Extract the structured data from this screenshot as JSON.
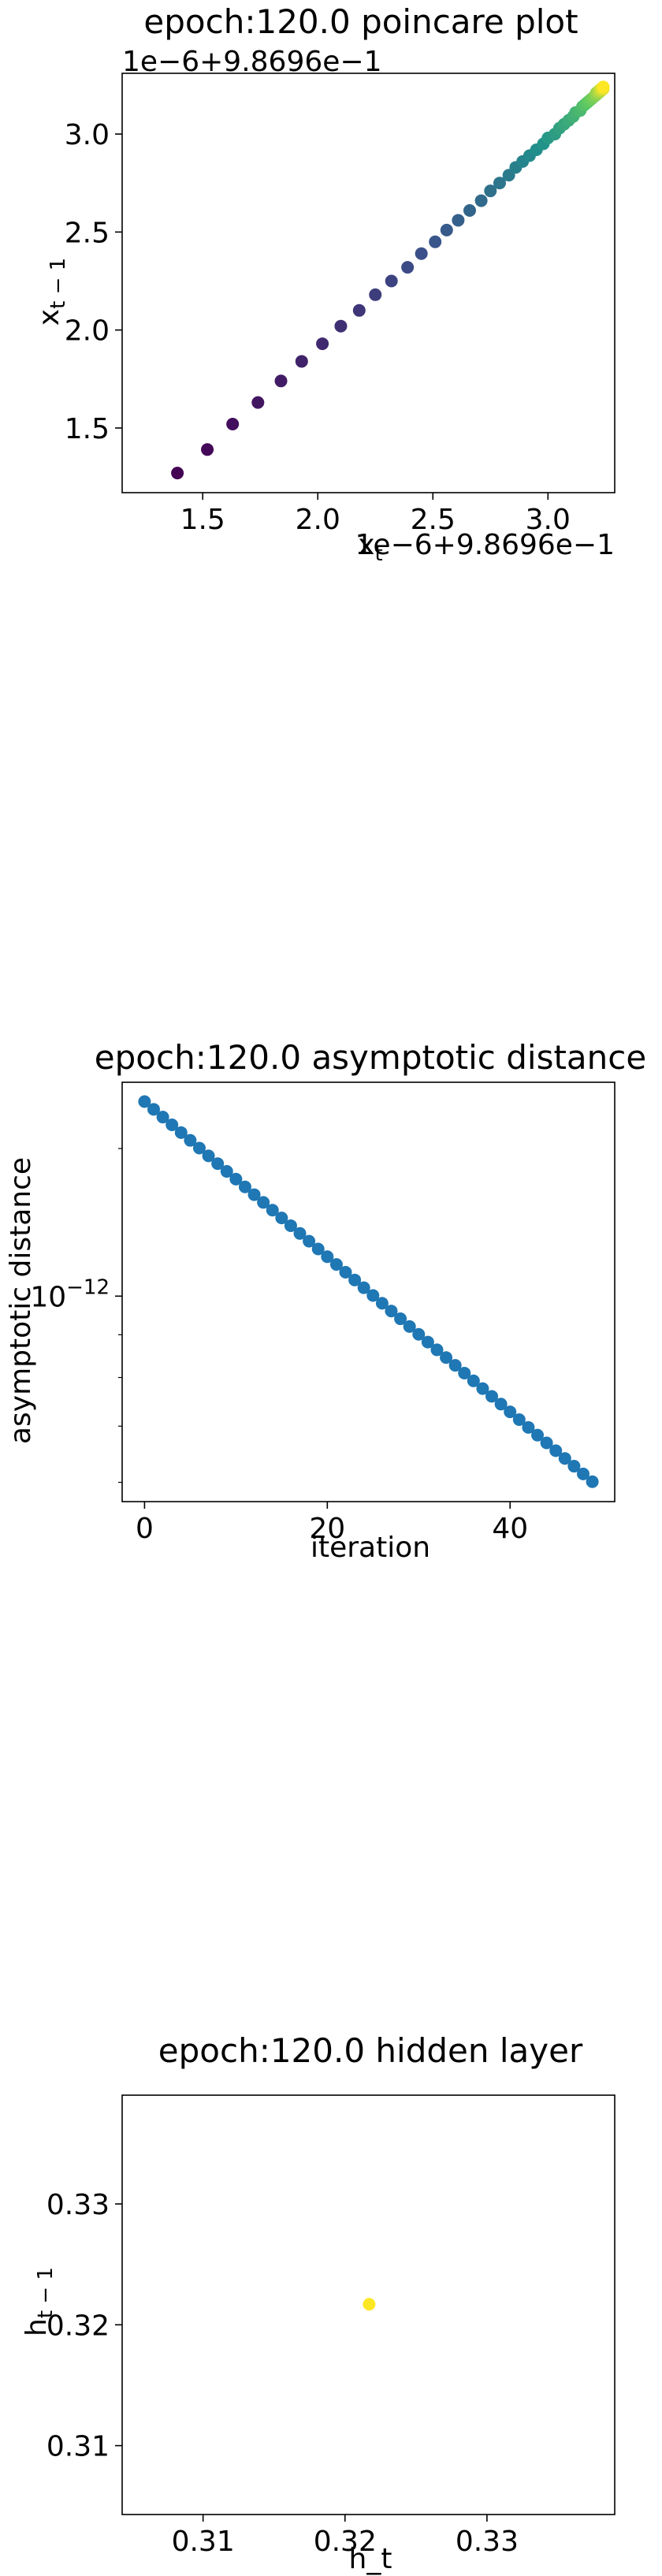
{
  "chart_data": [
    {
      "type": "scatter",
      "title": "epoch:120.0 poincare plot",
      "xlabel": "x_t",
      "ylabel": "x_{t-1}",
      "offset_label": "1e−6+9.8696e−1",
      "x_offset_label": "1e−6+9.8696e−1",
      "colormap": "viridis",
      "xlim": [
        1.15,
        3.29
      ],
      "ylim": [
        1.17,
        3.31
      ],
      "xticks": [
        1.5,
        2.0,
        2.5,
        3.0
      ],
      "xticklabels": [
        "1.5",
        "2.0",
        "2.5",
        "3.0"
      ],
      "yticks": [
        1.5,
        2.0,
        2.5,
        3.0
      ],
      "yticklabels": [
        "1.5",
        "2.0",
        "2.5",
        "3.0"
      ],
      "x": [
        1.39,
        1.52,
        1.63,
        1.74,
        1.84,
        1.93,
        2.02,
        2.1,
        2.18,
        2.25,
        2.32,
        2.39,
        2.45,
        2.51,
        2.56,
        2.61,
        2.66,
        2.71,
        2.75,
        2.79,
        2.83,
        2.86,
        2.89,
        2.92,
        2.95,
        2.98,
        3.0,
        3.03,
        3.05,
        3.07,
        3.09,
        3.11,
        3.12,
        3.14,
        3.15,
        3.16,
        3.17,
        3.18,
        3.19,
        3.2,
        3.21,
        3.21,
        3.22,
        3.22,
        3.23,
        3.23,
        3.23,
        3.24,
        3.24,
        3.24
      ],
      "y": [
        1.27,
        1.39,
        1.52,
        1.63,
        1.74,
        1.84,
        1.93,
        2.02,
        2.1,
        2.18,
        2.25,
        2.32,
        2.39,
        2.45,
        2.51,
        2.56,
        2.61,
        2.66,
        2.71,
        2.75,
        2.79,
        2.83,
        2.86,
        2.89,
        2.92,
        2.95,
        2.98,
        3.0,
        3.03,
        3.05,
        3.07,
        3.09,
        3.11,
        3.12,
        3.14,
        3.15,
        3.16,
        3.17,
        3.18,
        3.19,
        3.2,
        3.21,
        3.21,
        3.22,
        3.22,
        3.23,
        3.23,
        3.23,
        3.24,
        3.24
      ],
      "grid": false
    },
    {
      "type": "scatter",
      "title": "epoch:120.0 asymptotic distance",
      "xlabel": "iteration",
      "ylabel": "asymptotic distance",
      "yscale": "log",
      "color": "#1f77b4",
      "xlim": [
        -2.45,
        51.45
      ],
      "ylim_log10": [
        -12.245,
        -11.745
      ],
      "xticks": [
        0,
        20,
        40
      ],
      "xticklabels": [
        "0",
        "20",
        "40"
      ],
      "ytick_mantissa": "10",
      "ytick_exponent": "−12",
      "x": [
        0,
        1,
        2,
        3,
        4,
        5,
        6,
        7,
        8,
        9,
        10,
        11,
        12,
        13,
        14,
        15,
        16,
        17,
        18,
        19,
        20,
        21,
        22,
        23,
        24,
        25,
        26,
        27,
        28,
        29,
        30,
        31,
        32,
        33,
        34,
        35,
        36,
        37,
        38,
        39,
        40,
        41,
        42,
        43,
        44,
        45,
        46,
        47,
        48,
        49
      ],
      "y_log10_start": -11.768,
      "y_log10_step": -0.00925,
      "grid": false
    },
    {
      "type": "scatter",
      "title": "epoch:120.0 hidden layer",
      "xlabel": "h_t",
      "ylabel": "h_{t-1}",
      "color": "#fde725",
      "xlim": [
        0.3043,
        0.339
      ],
      "ylim": [
        0.3043,
        0.339
      ],
      "xticks": [
        0.31,
        0.32,
        0.33
      ],
      "xticklabels": [
        "0.31",
        "0.32",
        "0.33"
      ],
      "yticks": [
        0.31,
        0.32,
        0.33
      ],
      "yticklabels": [
        "0.31",
        "0.32",
        "0.33"
      ],
      "x": [
        0.3217
      ],
      "y": [
        0.3217
      ],
      "grid": false
    }
  ]
}
